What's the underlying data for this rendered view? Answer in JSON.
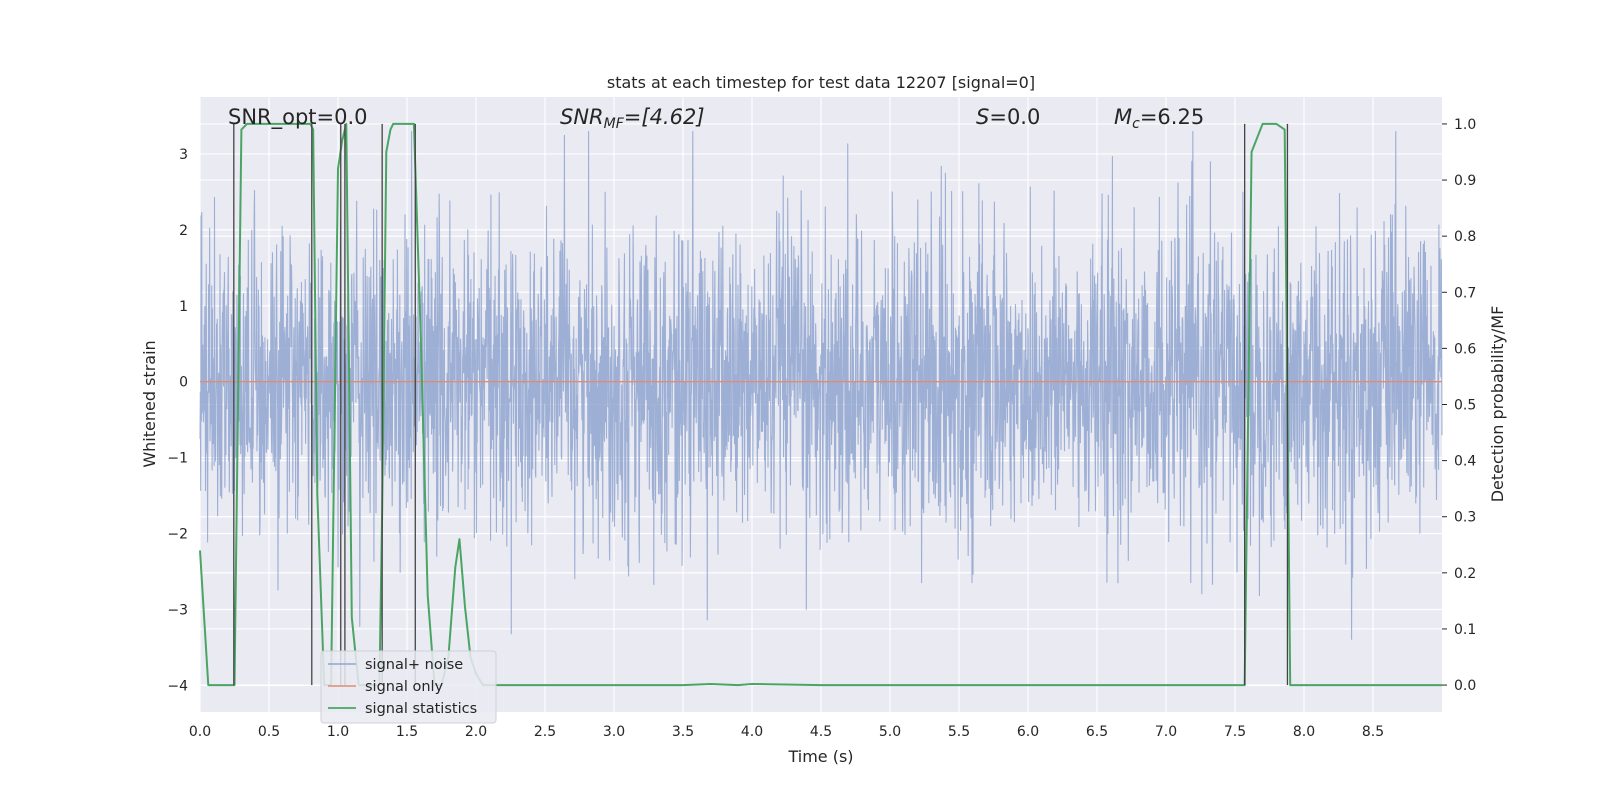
{
  "chart_data": {
    "type": "line",
    "title": "stats at each timestep for test data 12207 [signal=0]",
    "xlabel": "Time (s)",
    "ylabel": "Whitened strain",
    "y2label": "Detection probability/MF",
    "xlim": [
      0.0,
      9.0
    ],
    "ylim": [
      -4.35,
      3.75
    ],
    "y2lim": [
      -0.048,
      1.048
    ],
    "xticks": [
      "0.0",
      "0.5",
      "1.0",
      "1.5",
      "2.0",
      "2.5",
      "3.0",
      "3.5",
      "4.0",
      "4.5",
      "5.0",
      "5.5",
      "6.0",
      "6.5",
      "7.0",
      "7.5",
      "8.0",
      "8.5"
    ],
    "yticks": [
      "3",
      "2",
      "1",
      "0",
      "−1",
      "−2",
      "−3",
      "−4"
    ],
    "y2ticks": [
      "1.0",
      "0.9",
      "0.8",
      "0.7",
      "0.6",
      "0.5",
      "0.4",
      "0.3",
      "0.2",
      "0.1",
      "0.0"
    ],
    "grid": true,
    "legend_position": "lower-left",
    "annotations": {
      "snr_opt": "SNR_opt=0.0",
      "snr_mf_main": "SNR",
      "snr_mf_sub": "MF",
      "snr_mf_value": "=[4.62]",
      "s_symbol": "S",
      "s_value": "=0.0",
      "mc_main": "M",
      "mc_sub": "c",
      "mc_value": "=6.25"
    },
    "series": [
      {
        "name": "signal+ noise",
        "color": "#8fa5cf",
        "axis": "left",
        "description_kind": "noise",
        "envelope": {
          "typical_abs": 1.6,
          "peak": 3.3
        }
      },
      {
        "name": "signal only",
        "color": "#e08c72",
        "axis": "left",
        "x": [
          0.0,
          9.0
        ],
        "y": [
          0.0,
          0.0
        ]
      },
      {
        "name": "signal statistics",
        "color": "#4aa564",
        "axis": "right",
        "x": [
          0.0,
          0.06,
          0.25,
          0.3,
          0.34,
          0.4,
          0.45,
          0.5,
          0.6,
          0.7,
          0.8,
          0.82,
          0.85,
          0.9,
          0.95,
          1.0,
          1.03,
          1.06,
          1.1,
          1.15,
          1.2,
          1.25,
          1.3,
          1.32,
          1.35,
          1.38,
          1.4,
          1.45,
          1.55,
          1.6,
          1.65,
          1.7,
          1.75,
          1.8,
          1.85,
          1.88,
          1.92,
          1.96,
          2.0,
          2.05,
          2.1,
          2.5,
          3.0,
          3.5,
          3.7,
          3.9,
          4.0,
          4.5,
          5.0,
          5.5,
          6.0,
          6.5,
          7.0,
          7.5,
          7.57,
          7.62,
          7.7,
          7.8,
          7.86,
          7.9,
          7.95,
          8.0,
          8.5,
          9.0
        ],
        "y": [
          0.24,
          0.0,
          0.0,
          0.99,
          1.0,
          1.0,
          1.0,
          1.0,
          1.0,
          1.0,
          1.0,
          0.99,
          0.34,
          0.0,
          0.0,
          0.92,
          0.97,
          1.0,
          0.12,
          0.0,
          0.0,
          0.0,
          0.0,
          0.31,
          0.95,
          0.99,
          1.0,
          1.0,
          1.0,
          0.62,
          0.16,
          0.0,
          0.0,
          0.05,
          0.21,
          0.26,
          0.14,
          0.05,
          0.02,
          0.0,
          0.0,
          0.0,
          0.0,
          0.0,
          0.002,
          0.0,
          0.002,
          0.0,
          0.0,
          0.0,
          0.0,
          0.0,
          0.0,
          0.0,
          0.0,
          0.95,
          1.0,
          1.0,
          0.99,
          0.0,
          0.0,
          0.0,
          0.0,
          0.0
        ]
      }
    ],
    "vertical_markers_x": [
      0.245,
      0.81,
      1.02,
      1.05,
      1.32,
      1.56,
      7.57,
      7.88
    ],
    "legend": [
      {
        "label": "signal+ noise",
        "color": "#8fa5cf"
      },
      {
        "label": "signal only",
        "color": "#e08c72"
      },
      {
        "label": "signal statistics",
        "color": "#4aa564"
      }
    ],
    "colors": {
      "axes_background": "#eaeaf2",
      "grid": "#ffffff",
      "marker": "#444444"
    }
  }
}
